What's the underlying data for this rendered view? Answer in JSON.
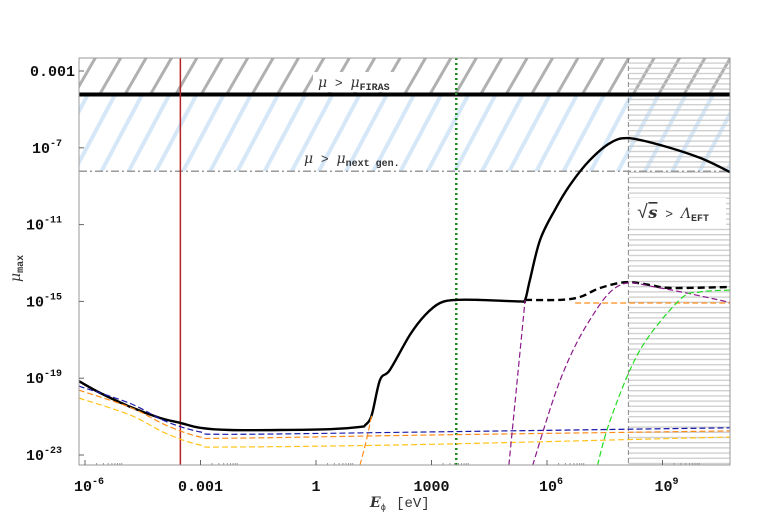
{
  "chart_data": {
    "type": "line",
    "xscale": "log",
    "yscale": "log",
    "xlim": [
      7e-07,
      56000000000.0
    ],
    "ylim": [
      3e-24,
      0.005
    ],
    "xlabel": {
      "main": "E",
      "sub": "ϕ",
      "unit": "[eV]"
    },
    "ylabel": {
      "main": "μ",
      "sub": "max"
    },
    "xticks": [
      {
        "value": 1e-06,
        "base": "10",
        "exp": "-6"
      },
      {
        "value": 0.001,
        "base": "0.001",
        "exp": ""
      },
      {
        "value": 1,
        "base": "1",
        "exp": ""
      },
      {
        "value": 1000.0,
        "base": "1000",
        "exp": ""
      },
      {
        "value": 1000000.0,
        "base": "10",
        "exp": "6"
      },
      {
        "value": 1000000000.0,
        "base": "10",
        "exp": "9"
      }
    ],
    "yticks": [
      {
        "value": 0.001,
        "base": "0.001",
        "exp": ""
      },
      {
        "value": 1e-07,
        "base": "10",
        "exp": "-7"
      },
      {
        "value": 1e-11,
        "base": "10",
        "exp": "-11"
      },
      {
        "value": 1e-15,
        "base": "10",
        "exp": "-15"
      },
      {
        "value": 1e-19,
        "base": "10",
        "exp": "-19"
      },
      {
        "value": 1e-23,
        "base": "10",
        "exp": "-23"
      }
    ],
    "grid": false,
    "regions": {
      "firas": {
        "mu_min": 6e-05,
        "label_lhs": "μ",
        "label_op": ">",
        "label_rhs": "μ",
        "label_sub": "FIRAS",
        "hatch_color": "#b0b0b0",
        "line_color": "#000000"
      },
      "next_gen": {
        "mu_min": 6e-09,
        "label_lhs": "μ",
        "label_op": ">",
        "label_rhs": "μ",
        "label_sub": "next gen.",
        "hatch_color": "#d6e8f8",
        "line_color": "#999999"
      },
      "eft": {
        "E_min": 130000000.0,
        "label_lhs": "√",
        "label_s": "s",
        "label_op": ">",
        "label_rhs": "Λ",
        "label_sub": "EFT",
        "hatch_color": "#c8c8c8"
      }
    },
    "vlines": [
      {
        "x": 0.0003,
        "color": "#b22222",
        "style": "solid"
      },
      {
        "x": 4400.0,
        "color": "#1a8a1a",
        "style": "dotted"
      }
    ],
    "series": [
      {
        "color": "#000000",
        "style": "solid",
        "width": 2.4,
        "points": [
          [
            6.9e-07,
            7.1e-20
          ],
          [
            2.5e-06,
            1.7e-20
          ],
          [
            1.5e-05,
            3.2e-21
          ],
          [
            8.9e-05,
            8.5e-22
          ],
          [
            0.0003,
            4.7e-22
          ],
          [
            0.00098,
            2.6e-22
          ],
          [
            0.0059,
            2e-22
          ],
          [
            0.11,
            2e-22
          ],
          [
            2.3,
            2.2e-22
          ],
          [
            14,
            2.9e-22
          ],
          [
            19,
            3.6e-22
          ],
          [
            28,
            1.2e-21
          ],
          [
            46,
            8.1e-20
          ],
          [
            83,
            2.7e-19
          ],
          [
            275,
            1.8e-17
          ],
          [
            676,
            1.9e-16
          ],
          [
            1660,
            8.3e-16
          ],
          [
            4400.0,
            1.2e-15
          ],
          [
            18000.0,
            1.2e-15
          ],
          [
            200000.0,
            1e-15
          ],
          [
            270000.0,
            1.2e-15
          ],
          [
            360000.0,
            1.3e-14
          ],
          [
            660000.0,
            1.6e-12
          ],
          [
            1600000.0,
            5.8e-11
          ],
          [
            4000000.0,
            1.2e-09
          ],
          [
            13000000.0,
            2.3e-08
          ],
          [
            44000000.0,
            1.8e-07
          ],
          [
            130000000.0,
            3.2e-07
          ],
          [
            870000000.0,
            1.4e-07
          ],
          [
            9300000000.0,
            3e-08
          ],
          [
            56000000000.0,
            5.5e-09
          ]
        ]
      },
      {
        "color": "#000000",
        "style": "dashed",
        "width": 2.4,
        "points": [
          [
            270000.0,
            1.2e-15
          ],
          [
            2200000.0,
            1.2e-15
          ],
          [
            7200000.0,
            1.7e-15
          ],
          [
            24000000.0,
            5e-15
          ],
          [
            110000000.0,
            1e-14
          ],
          [
            480000000.0,
            7.1e-15
          ],
          [
            1600000000.0,
            5e-15
          ],
          [
            56000000000.0,
            5.6e-15
          ]
        ]
      },
      {
        "color": "#1a1aa8",
        "style": "dashed",
        "width": 1.2,
        "points": [
          [
            6.9e-07,
            3.9e-20
          ],
          [
            1.5e-05,
            4.8e-21
          ],
          [
            0.00013,
            5.5e-22
          ],
          [
            0.00098,
            1.6e-22
          ],
          [
            0.0059,
            1.2e-22
          ],
          [
            1000.0,
            1.6e-22
          ],
          [
            56000000000.0,
            2.6e-22
          ]
        ]
      },
      {
        "color": "#ff8c1a",
        "style": "dashed",
        "width": 1.2,
        "points": [
          [
            6.9e-07,
            2.4e-20
          ],
          [
            1.5e-05,
            3e-21
          ],
          [
            0.00013,
            3.5e-22
          ],
          [
            0.00098,
            8.7e-23
          ],
          [
            0.0059,
            7.5e-23
          ],
          [
            1000.0,
            1.1e-22
          ],
          [
            56000000000.0,
            1.8e-22
          ]
        ]
      },
      {
        "color": "#ffc41a",
        "style": "dashed",
        "width": 1.2,
        "points": [
          [
            6.9e-07,
            9.3e-21
          ],
          [
            1.5e-05,
            1.2e-21
          ],
          [
            0.00013,
            1.3e-22
          ],
          [
            0.00098,
            3.3e-23
          ],
          [
            0.0059,
            2.6e-23
          ],
          [
            1000.0,
            3.6e-23
          ],
          [
            56000000000.0,
            8.7e-23
          ]
        ]
      },
      {
        "color": "#ff8c1a",
        "style": "dashed",
        "width": 1.2,
        "points": [
          [
            12,
            1e-24
          ],
          [
            20,
            5e-23
          ],
          [
            28,
            1.2e-21
          ]
        ]
      },
      {
        "color": "#ff8c1a",
        "style": "dashed",
        "width": 1.2,
        "points": [
          [
            5400000.0,
            8.3e-16
          ],
          [
            56000000000.0,
            8.3e-16
          ]
        ]
      },
      {
        "color": "#8b1a8b",
        "style": "dashed",
        "width": 1.2,
        "points": [
          [
            97000.0,
            1e-24
          ],
          [
            150000.0,
            7.4e-21
          ],
          [
            270000.0,
            1.2e-15
          ]
        ]
      },
      {
        "color": "#8b1a8b",
        "style": "dashed",
        "width": 1.2,
        "points": [
          [
            360000.0,
            1e-24
          ],
          [
            2200000.0,
            8.1e-20
          ],
          [
            13000000.0,
            1.1e-16
          ],
          [
            79000000.0,
            7.1e-15
          ],
          [
            870000000.0,
            5e-15
          ],
          [
            56000000000.0,
            9e-16
          ]
        ]
      },
      {
        "color": "#22dd22",
        "style": "dashed",
        "width": 1.2,
        "points": [
          [
            18000000.0,
            1e-24
          ],
          [
            44000000.0,
            6.6e-22
          ],
          [
            260000000.0,
            2.9e-18
          ],
          [
            2800000000.0,
            1.2e-15
          ],
          [
            9300000000.0,
            3.1e-15
          ],
          [
            56000000000.0,
            3.9e-15
          ]
        ]
      }
    ]
  }
}
